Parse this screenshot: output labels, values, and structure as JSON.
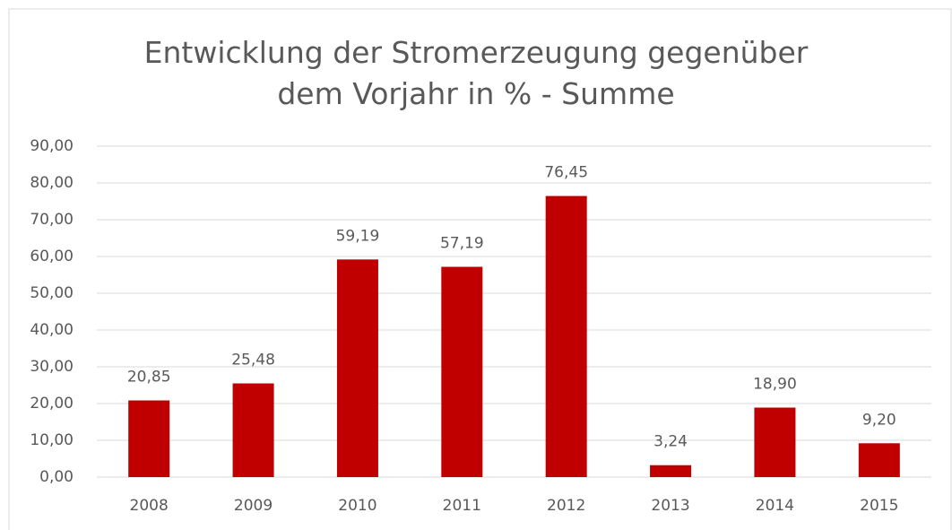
{
  "chart_data": {
    "type": "bar",
    "title": "Entwicklung der Stromerzeugung gegenüber dem Vorjahr in % - Summe",
    "categories": [
      "2008",
      "2009",
      "2010",
      "2011",
      "2012",
      "2013",
      "2014",
      "2015"
    ],
    "values": [
      20.85,
      25.48,
      59.19,
      57.19,
      76.45,
      3.24,
      18.9,
      9.2
    ],
    "value_labels": [
      "20,85",
      "25,48",
      "59,19",
      "57,19",
      "76,45",
      "3,24",
      "18,90",
      "9,20"
    ],
    "color": "#c00000",
    "ylim": [
      0,
      90
    ],
    "yticks": [
      {
        "value": 0,
        "label": "0,00"
      },
      {
        "value": 10,
        "label": "10,00"
      },
      {
        "value": 20,
        "label": "20,00"
      },
      {
        "value": 30,
        "label": "30,00"
      },
      {
        "value": 40,
        "label": "40,00"
      },
      {
        "value": 50,
        "label": "50,00"
      },
      {
        "value": 60,
        "label": "60,00"
      },
      {
        "value": 70,
        "label": "70,00"
      },
      {
        "value": 80,
        "label": "80,00"
      },
      {
        "value": 90,
        "label": "90,00"
      }
    ],
    "grid": true
  }
}
